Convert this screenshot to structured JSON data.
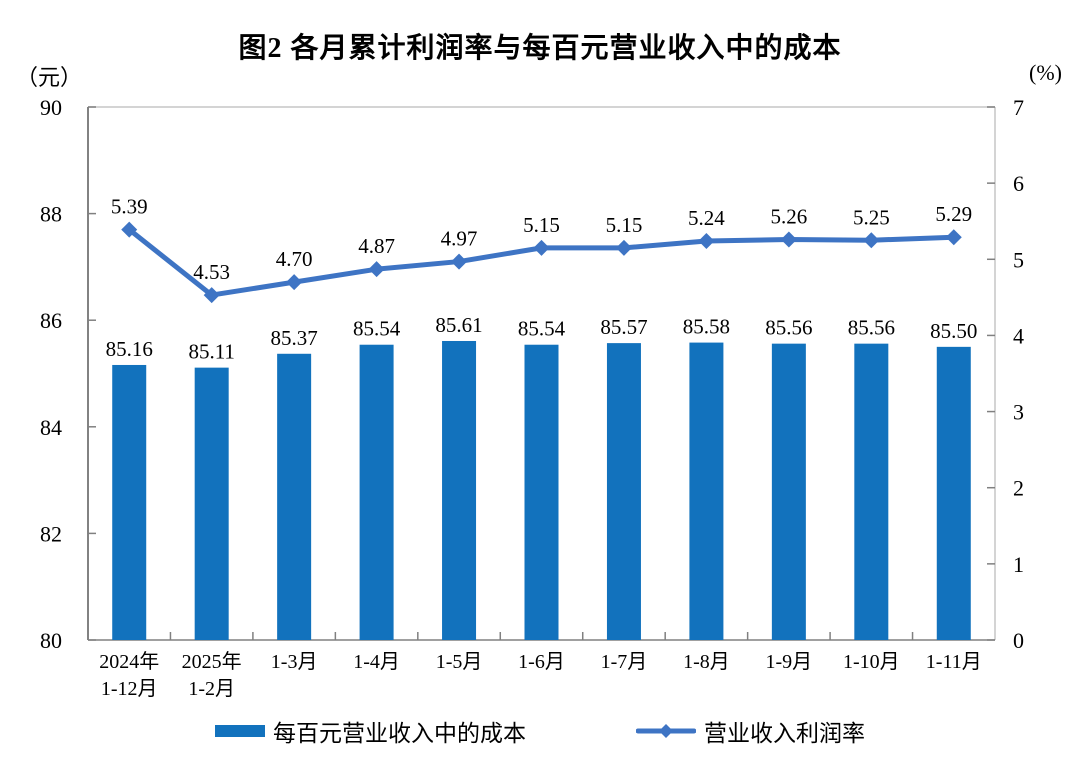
{
  "chart_data": {
    "type": "bar+line combo",
    "title": "图2 各月累计利润率与每百元营业收入中的成本",
    "categories": [
      [
        "2024年",
        "1-12月"
      ],
      [
        "2025年",
        "1-2月"
      ],
      [
        "1-3月"
      ],
      [
        "1-4月"
      ],
      [
        "1-5月"
      ],
      [
        "1-6月"
      ],
      [
        "1-7月"
      ],
      [
        "1-8月"
      ],
      [
        "1-9月"
      ],
      [
        "1-10月"
      ],
      [
        "1-11月"
      ]
    ],
    "series": [
      {
        "name": "每百元营业收入中的成本",
        "type": "bar",
        "axis": "left",
        "color": "#1272BD",
        "values": [
          85.16,
          85.11,
          85.37,
          85.54,
          85.61,
          85.54,
          85.57,
          85.58,
          85.56,
          85.56,
          85.5
        ]
      },
      {
        "name": "营业收入利润率",
        "type": "line",
        "axis": "right",
        "color": "#3E74C4",
        "values": [
          5.39,
          4.53,
          4.7,
          4.87,
          4.97,
          5.15,
          5.15,
          5.24,
          5.26,
          5.25,
          5.29
        ]
      }
    ],
    "left_axis": {
      "unit": "（元）",
      "min": 80,
      "max": 90,
      "ticks": [
        80,
        82,
        84,
        86,
        88,
        90
      ]
    },
    "right_axis": {
      "unit": "(%)",
      "min": 0,
      "max": 7,
      "ticks": [
        0,
        1,
        2,
        3,
        4,
        5,
        6,
        7
      ]
    },
    "grid": "off",
    "legend_position": "bottom",
    "colors": {
      "plot_border": "#c6c6c6",
      "left_axis_line": "#595959",
      "bottom_axis_line": "#808080",
      "tick_mark": "#808080"
    }
  }
}
